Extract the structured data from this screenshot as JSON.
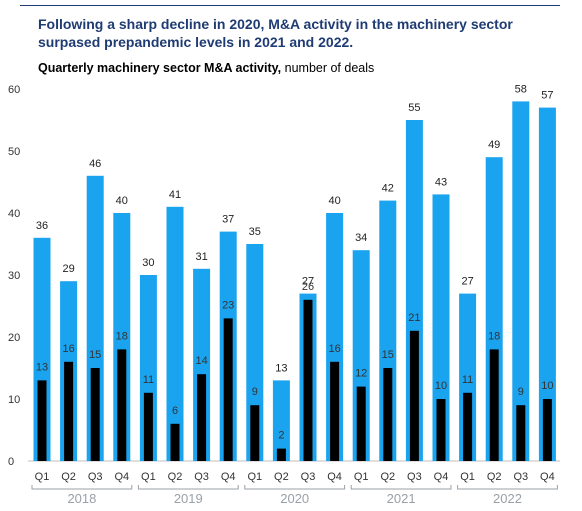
{
  "headline": "Following a sharp decline in 2020, M&A activity in the machinery sector surpased prepandemic levels in 2021 and 2022.",
  "subtitle_bold": "Quarterly machinery sector M&A activity,",
  "subtitle_rest": " number of deals",
  "colors": {
    "headline": "#1f3b73",
    "total_bar": "#1aa3ee",
    "subset_bar": "#000000",
    "bracket": "#9aa0a6",
    "year_label": "#9aa0a6"
  },
  "chart_data": {
    "type": "bar",
    "x": [
      "Q1",
      "Q2",
      "Q3",
      "Q4",
      "Q1",
      "Q2",
      "Q3",
      "Q4",
      "Q1",
      "Q2",
      "Q3",
      "Q4",
      "Q1",
      "Q2",
      "Q3",
      "Q4",
      "Q1",
      "Q2",
      "Q3",
      "Q4"
    ],
    "groups": [
      {
        "label": "2018",
        "start": 0,
        "end": 3
      },
      {
        "label": "2019",
        "start": 4,
        "end": 7
      },
      {
        "label": "2020",
        "start": 8,
        "end": 11
      },
      {
        "label": "2021",
        "start": 12,
        "end": 15
      },
      {
        "label": "2022",
        "start": 16,
        "end": 19
      }
    ],
    "series": [
      {
        "values": [
          36,
          29,
          46,
          40,
          30,
          41,
          31,
          37,
          35,
          13,
          27,
          40,
          34,
          42,
          55,
          43,
          27,
          49,
          58,
          57
        ]
      },
      {
        "values": [
          13,
          16,
          15,
          18,
          11,
          6,
          14,
          23,
          9,
          2,
          26,
          16,
          12,
          15,
          21,
          10,
          11,
          18,
          9,
          10
        ]
      }
    ],
    "yticks": [
      0,
      10,
      20,
      30,
      40,
      50,
      60
    ],
    "ylim": [
      0,
      60
    ],
    "grid": false,
    "legend": "none"
  }
}
